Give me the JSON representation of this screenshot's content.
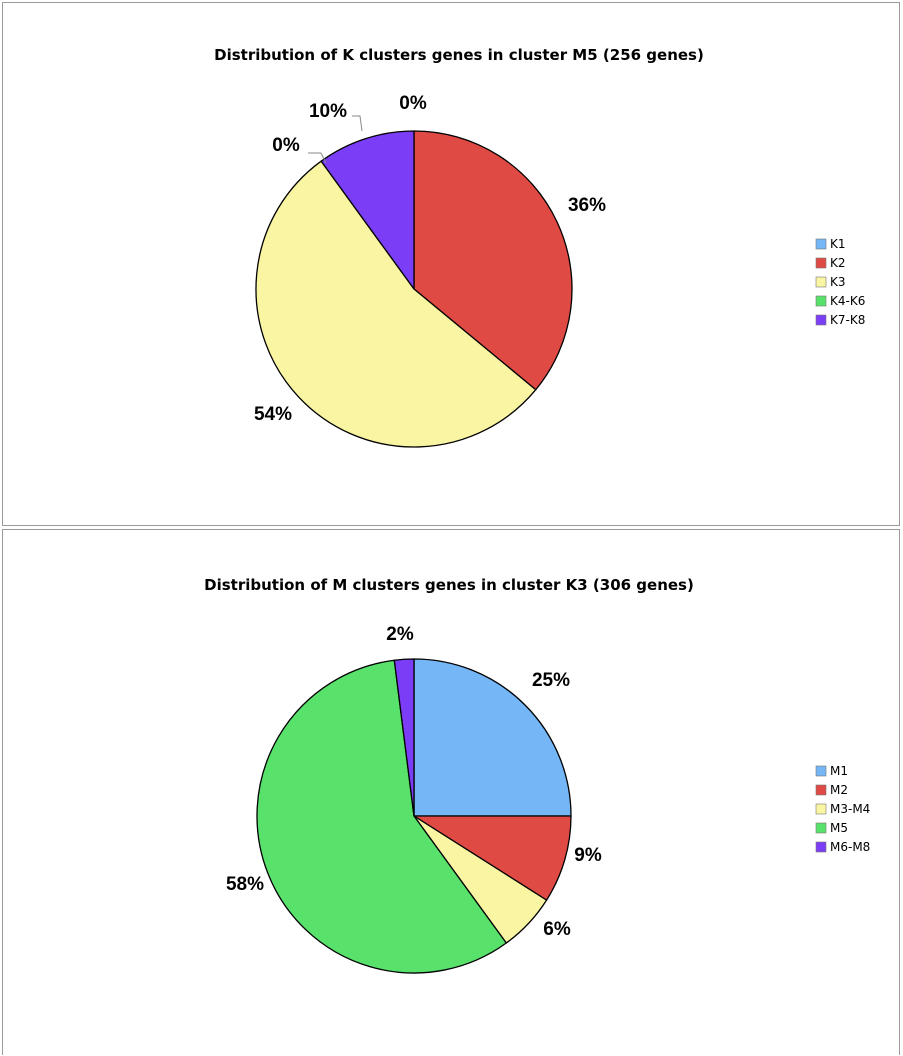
{
  "chart_data": [
    {
      "type": "pie",
      "title": "Distribution of K clusters genes in cluster M5 (256 genes)",
      "categories": [
        "K1",
        "K2",
        "K3",
        "K4-K6",
        "K7-K8"
      ],
      "values": [
        0,
        36,
        54,
        0,
        10
      ],
      "labels": [
        "0%",
        "36%",
        "54%",
        "0%",
        "10%"
      ],
      "colors": [
        "#74b6f6",
        "#e04a44",
        "#faf5a3",
        "#58e26c",
        "#7b3df5"
      ],
      "legend": "right"
    },
    {
      "type": "pie",
      "title": "Distribution of M clusters genes in cluster K3 (306 genes)",
      "categories": [
        "M1",
        "M2",
        "M3-M4",
        "M5",
        "M6-M8"
      ],
      "values": [
        25,
        9,
        6,
        58,
        2
      ],
      "labels": [
        "25%",
        "9%",
        "6%",
        "58%",
        "2%"
      ],
      "colors": [
        "#74b6f6",
        "#e04a44",
        "#faf5a3",
        "#58e26c",
        "#7b3df5"
      ],
      "legend": "right"
    }
  ]
}
